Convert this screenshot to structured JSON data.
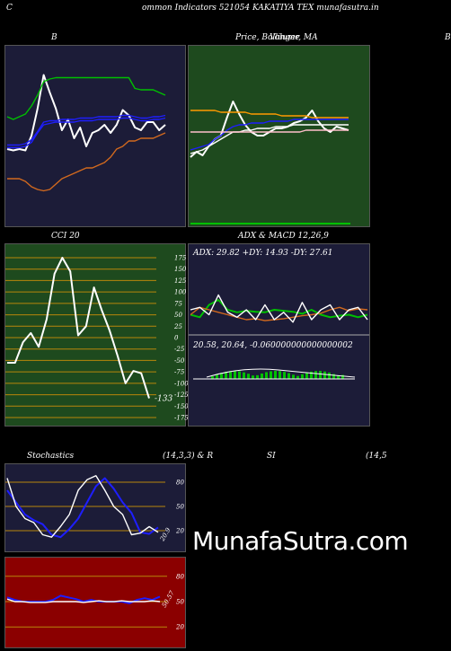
{
  "header": {
    "left": "C",
    "title": "ommon  Indicators 521054   KAKATIYA TEX   munafasutra.in"
  },
  "panel_titles": {
    "bollinger": "B",
    "price": "Price,  Bollinger,  MA",
    "price_overlap": "Volume",
    "right_edge": "B",
    "cci": "CCI 20",
    "adx": "ADX  & MACD 12,26,9",
    "stoch": "Stochastics",
    "stoch_params": "(14,3,3) & R",
    "rsi": "SI",
    "rsi_params": "(14,5"
  },
  "watermark": "MunafaSutra.com",
  "colors": {
    "background": "#000000",
    "panel_navy": "#1c1c38",
    "panel_green": "#1e4a1e",
    "panel_red": "#8b0000",
    "grid_orange": "#b8860b",
    "blue": "#1e1eff",
    "green": "#00c000",
    "orange": "#d2691e"
  },
  "chart_data": [
    {
      "type": "line",
      "title": "B",
      "y_axis": "hidden",
      "series": [
        {
          "color": "#ffffff",
          "values": [
            50,
            49,
            50,
            49,
            60,
            80,
            105,
            92,
            80,
            64,
            72,
            58,
            66,
            52,
            62,
            64,
            68,
            62,
            68,
            79,
            75,
            66,
            64,
            70,
            70,
            64,
            68
          ]
        },
        {
          "color": "#00c000",
          "values": [
            74,
            72,
            74,
            76,
            82,
            90,
            100,
            102,
            103,
            103,
            103,
            103,
            103,
            103,
            103,
            103,
            103,
            103,
            103,
            103,
            103,
            95,
            94,
            94,
            94,
            92,
            90
          ]
        },
        {
          "color": "#1e1eff",
          "values": [
            51,
            51,
            51,
            52,
            55,
            62,
            68,
            69,
            70,
            70,
            70,
            70,
            71,
            71,
            71,
            72,
            72,
            72,
            72,
            73,
            73,
            72,
            71,
            71,
            72,
            72,
            73
          ]
        },
        {
          "color": "#1e1eff",
          "values": [
            53,
            53,
            53,
            54,
            57,
            63,
            70,
            71,
            71,
            72,
            72,
            72,
            73,
            73,
            73,
            74,
            74,
            74,
            74,
            75,
            75,
            74,
            73,
            73,
            74,
            74,
            75
          ]
        },
        {
          "color": "#d2691e",
          "values": [
            28,
            28,
            28,
            26,
            22,
            20,
            19,
            20,
            24,
            28,
            30,
            32,
            34,
            36,
            36,
            38,
            40,
            44,
            50,
            52,
            56,
            56,
            58,
            58,
            58,
            60,
            62
          ]
        }
      ]
    },
    {
      "type": "line",
      "title": "Price,  Bollinger,  MA",
      "y_axis": "hidden",
      "series": [
        {
          "color": "#ffffff",
          "values": [
            68,
            71,
            69,
            74,
            78,
            80,
            90,
            99,
            92,
            86,
            82,
            80,
            80,
            82,
            84,
            84,
            85,
            87,
            88,
            90,
            94,
            88,
            84,
            82,
            85,
            84,
            83
          ]
        },
        {
          "color": "#ffffff",
          "values": [
            70,
            71,
            72,
            74,
            76,
            78,
            80,
            82,
            82,
            83,
            83,
            84,
            84,
            84,
            85,
            85,
            85,
            86,
            86,
            86,
            86,
            86,
            86,
            86,
            86,
            86,
            86
          ]
        },
        {
          "color": "#1e1eff",
          "values": [
            72,
            73,
            74,
            75,
            78,
            80,
            83,
            85,
            86,
            86,
            87,
            87,
            87,
            88,
            88,
            88,
            88,
            89,
            89,
            89,
            89,
            89,
            89,
            89,
            89,
            89,
            89
          ]
        },
        {
          "color": "#ff9a00",
          "values": [
            94,
            94,
            94,
            94,
            94,
            93,
            93,
            93,
            93,
            93,
            92,
            92,
            92,
            92,
            92,
            91,
            91,
            91,
            91,
            91,
            90,
            90,
            90,
            90,
            90,
            90,
            90
          ]
        },
        {
          "color": "#ffc0cb",
          "values": [
            82,
            82,
            82,
            82,
            82,
            82,
            82,
            82,
            82,
            82,
            82,
            82,
            82,
            82,
            82,
            82,
            82,
            82,
            82,
            83,
            83,
            83,
            83,
            83,
            83,
            83,
            83
          ]
        }
      ]
    },
    {
      "type": "line",
      "title": "CCI 20",
      "y_ticks": [
        175,
        150,
        125,
        100,
        75,
        50,
        25,
        0,
        -25,
        -50,
        -75,
        -100,
        -125,
        -150,
        -175
      ],
      "ylim": [
        -175,
        175
      ],
      "last_label": "-133",
      "series": [
        {
          "color": "#ffffff",
          "values": [
            -55,
            -55,
            -10,
            10,
            -20,
            40,
            140,
            175,
            145,
            5,
            25,
            110,
            60,
            15,
            -40,
            -100,
            -73,
            -78,
            -133
          ]
        }
      ]
    },
    {
      "type": "line",
      "title": "ADX  & MACD 12,26,9",
      "readout_adx": "ADX: 29.82   +DY: 14.93  -DY: 27.61",
      "readout_macd": "20.58,  20.64,  -0.060000000000000002",
      "series": [
        {
          "color": "#00c000",
          "values": [
            30,
            25,
            50,
            60,
            40,
            35,
            38,
            36,
            35,
            40,
            38,
            36,
            32,
            40,
            30,
            25,
            28,
            30,
            25,
            30
          ]
        },
        {
          "color": "#d2691e",
          "values": [
            30,
            45,
            40,
            35,
            30,
            25,
            20,
            22,
            18,
            20,
            22,
            25,
            28,
            30,
            33,
            40,
            45,
            38,
            42,
            40
          ]
        },
        {
          "color": "#ffffff",
          "values": [
            40,
            45,
            30,
            70,
            35,
            25,
            40,
            20,
            50,
            20,
            35,
            15,
            55,
            20,
            40,
            50,
            20,
            40,
            45,
            20
          ]
        }
      ]
    },
    {
      "type": "line",
      "title": "Stochastics",
      "y_ticks": [
        80,
        50,
        20
      ],
      "ylim": [
        0,
        100
      ],
      "last_label": "20.9",
      "series": [
        {
          "color": "#1e1eff",
          "values": [
            70,
            55,
            40,
            33,
            28,
            15,
            12,
            22,
            35,
            55,
            75,
            85,
            72,
            55,
            42,
            18,
            16,
            24
          ]
        },
        {
          "color": "#ffffff",
          "values": [
            85,
            50,
            35,
            30,
            15,
            12,
            25,
            40,
            70,
            83,
            88,
            70,
            50,
            40,
            15,
            17,
            25,
            18
          ]
        }
      ]
    },
    {
      "type": "line",
      "title": "SI",
      "y_ticks": [
        80,
        50,
        20
      ],
      "ylim": [
        0,
        100
      ],
      "last_label": "50.57",
      "series": [
        {
          "color": "#1e1eff",
          "values": [
            55,
            52,
            50,
            50,
            50,
            50,
            52,
            57,
            55,
            53,
            50,
            52,
            50,
            50,
            50,
            50,
            48,
            52,
            54,
            52,
            56
          ]
        },
        {
          "color": "#ffffff",
          "values": [
            53,
            50,
            50,
            49,
            49,
            49,
            50,
            50,
            50,
            50,
            49,
            50,
            51,
            50,
            50,
            51,
            50,
            50,
            50,
            51,
            50
          ]
        }
      ]
    }
  ]
}
